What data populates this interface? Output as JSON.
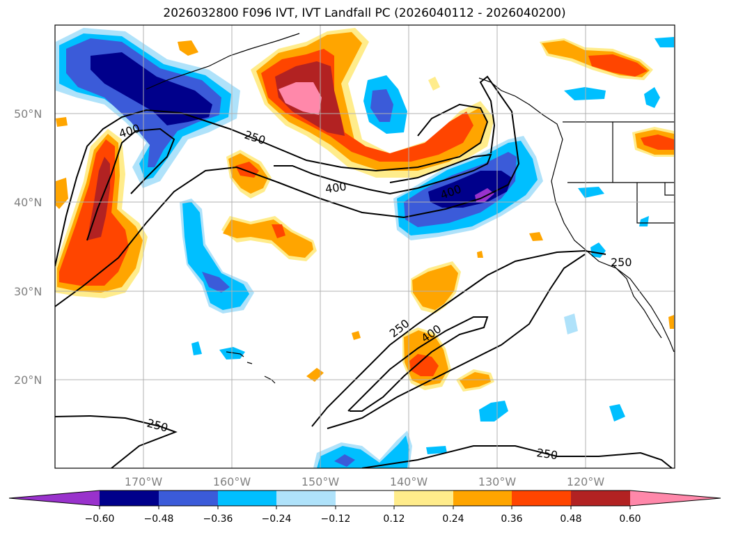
{
  "title": "2026032800 F096 IVT, IVT Landfall PC (2026040112 - 2026040200)",
  "map": {
    "lon_range": [
      -180,
      -110
    ],
    "lat_range": [
      10,
      60
    ],
    "lat_ticks": [
      {
        "value": 50,
        "label": "50°N"
      },
      {
        "value": 40,
        "label": "40°N"
      },
      {
        "value": 30,
        "label": "30°N"
      },
      {
        "value": 20,
        "label": "20°N"
      }
    ],
    "lon_ticks": [
      {
        "value": -170,
        "label": "170°W"
      },
      {
        "value": -160,
        "label": "160°W"
      },
      {
        "value": -150,
        "label": "150°W"
      },
      {
        "value": -140,
        "label": "140°W"
      },
      {
        "value": -130,
        "label": "130°W"
      },
      {
        "value": -120,
        "label": "120°W"
      }
    ],
    "contour_labels": [
      "400",
      "250",
      "400",
      "400",
      "250",
      "400",
      "250",
      "250",
      "250"
    ]
  },
  "colorbar": {
    "colors": [
      "#9932cc",
      "#00008b",
      "#3b5bd9",
      "#00bfff",
      "#afe2fa",
      "#ffffff",
      "#ffec8b",
      "#ffa500",
      "#ff4500",
      "#b22222",
      "#ff88aa"
    ],
    "tick_labels": [
      "−0.60",
      "−0.48",
      "−0.36",
      "−0.24",
      "−0.12",
      "0.12",
      "0.24",
      "0.36",
      "0.48",
      "0.60"
    ]
  }
}
